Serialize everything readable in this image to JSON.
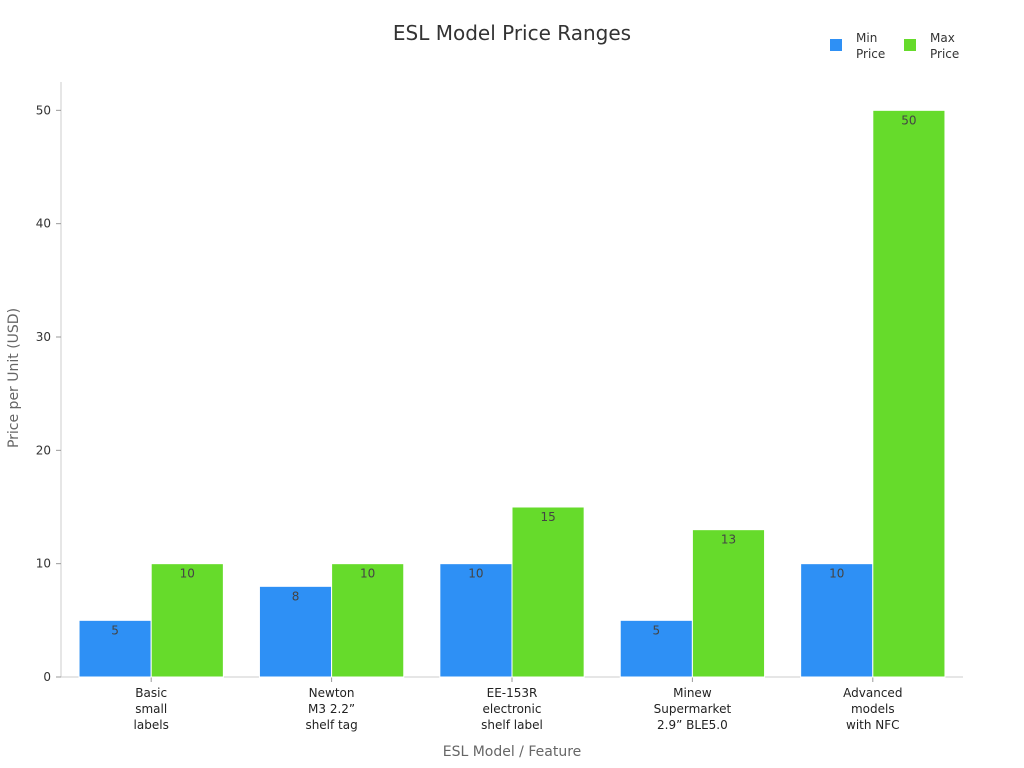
{
  "chart_data": {
    "type": "bar",
    "title": "ESL Model Price Ranges",
    "xlabel": "ESL Model / Feature",
    "ylabel": "Price per Unit (USD)",
    "categories": [
      [
        "Basic",
        "small",
        "labels"
      ],
      [
        "Newton",
        "M3 2.2”",
        "shelf tag"
      ],
      [
        "EE-153R",
        "electronic",
        "shelf label"
      ],
      [
        "Minew",
        "Supermarket",
        "2.9” BLE5.0"
      ],
      [
        "Advanced",
        "models",
        "with NFC"
      ]
    ],
    "series": [
      {
        "name": [
          "Min",
          "Price"
        ],
        "values": [
          5,
          8,
          10,
          5,
          10
        ],
        "color": "#2e90f5"
      },
      {
        "name": [
          "Max",
          "Price"
        ],
        "values": [
          10,
          10,
          15,
          13,
          50
        ],
        "color": "#66db2b"
      }
    ],
    "ylim": [
      0,
      52.5
    ],
    "yticks": [
      0,
      10,
      20,
      30,
      40,
      50
    ],
    "grid": false,
    "legend_position": "top-right"
  }
}
